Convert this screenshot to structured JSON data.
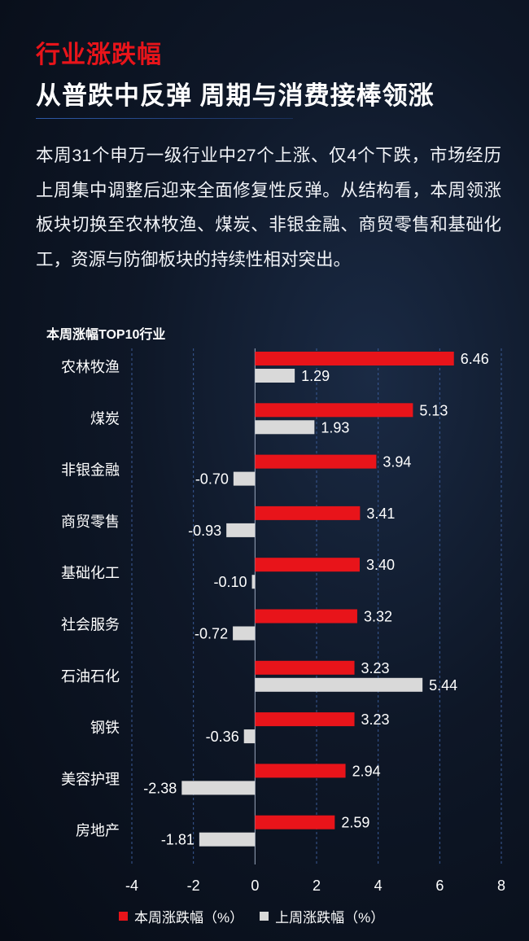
{
  "header": {
    "section_tag": "行业涨跌幅",
    "headline": "从普跌中反弹 周期与消费接棒领涨",
    "summary": "本周31个申万一级行业中27个上涨、仅4个下跌，市场经历上周集中调整后迎来全面修复性反弹。从结构看，本周领涨板块切换至农林牧渔、煤炭、非银金融、商贸零售和基础化工，资源与防御板块的持续性相对突出。"
  },
  "chart_data": {
    "type": "bar",
    "orientation": "horizontal",
    "title": "本周涨幅TOP10行业",
    "categories": [
      "农林牧渔",
      "煤炭",
      "非银金融",
      "商贸零售",
      "基础化工",
      "社会服务",
      "石油石化",
      "钢铁",
      "美容护理",
      "房地产"
    ],
    "series": [
      {
        "name": "本周涨跌幅（%）",
        "color": "#e8141a",
        "values": [
          6.46,
          5.13,
          3.94,
          3.41,
          3.4,
          3.32,
          3.23,
          3.23,
          2.94,
          2.59
        ]
      },
      {
        "name": "上周涨跌幅（%）",
        "color": "#d9d9d9",
        "values": [
          1.29,
          1.93,
          -0.7,
          -0.93,
          -0.1,
          -0.72,
          5.44,
          -0.36,
          -2.38,
          -1.81
        ]
      }
    ],
    "value_labels": [
      [
        "6.46",
        "5.13",
        "3.94",
        "3.41",
        "3.40",
        "3.32",
        "3.23",
        "3.23",
        "2.94",
        "2.59"
      ],
      [
        "1.29",
        "1.93",
        "-0.70",
        "-0.93",
        "-0.10",
        "-0.72",
        "5.44",
        "-0.36",
        "-2.38",
        "-1.81"
      ]
    ],
    "xlim": [
      -4,
      8
    ],
    "xticks": [
      -4,
      -2,
      0,
      2,
      4,
      6,
      8
    ],
    "xtick_labels": [
      "-4",
      "-2",
      "0",
      "2",
      "4",
      "6",
      "8"
    ],
    "grid": "vertical dashed",
    "legend": "bottom"
  }
}
